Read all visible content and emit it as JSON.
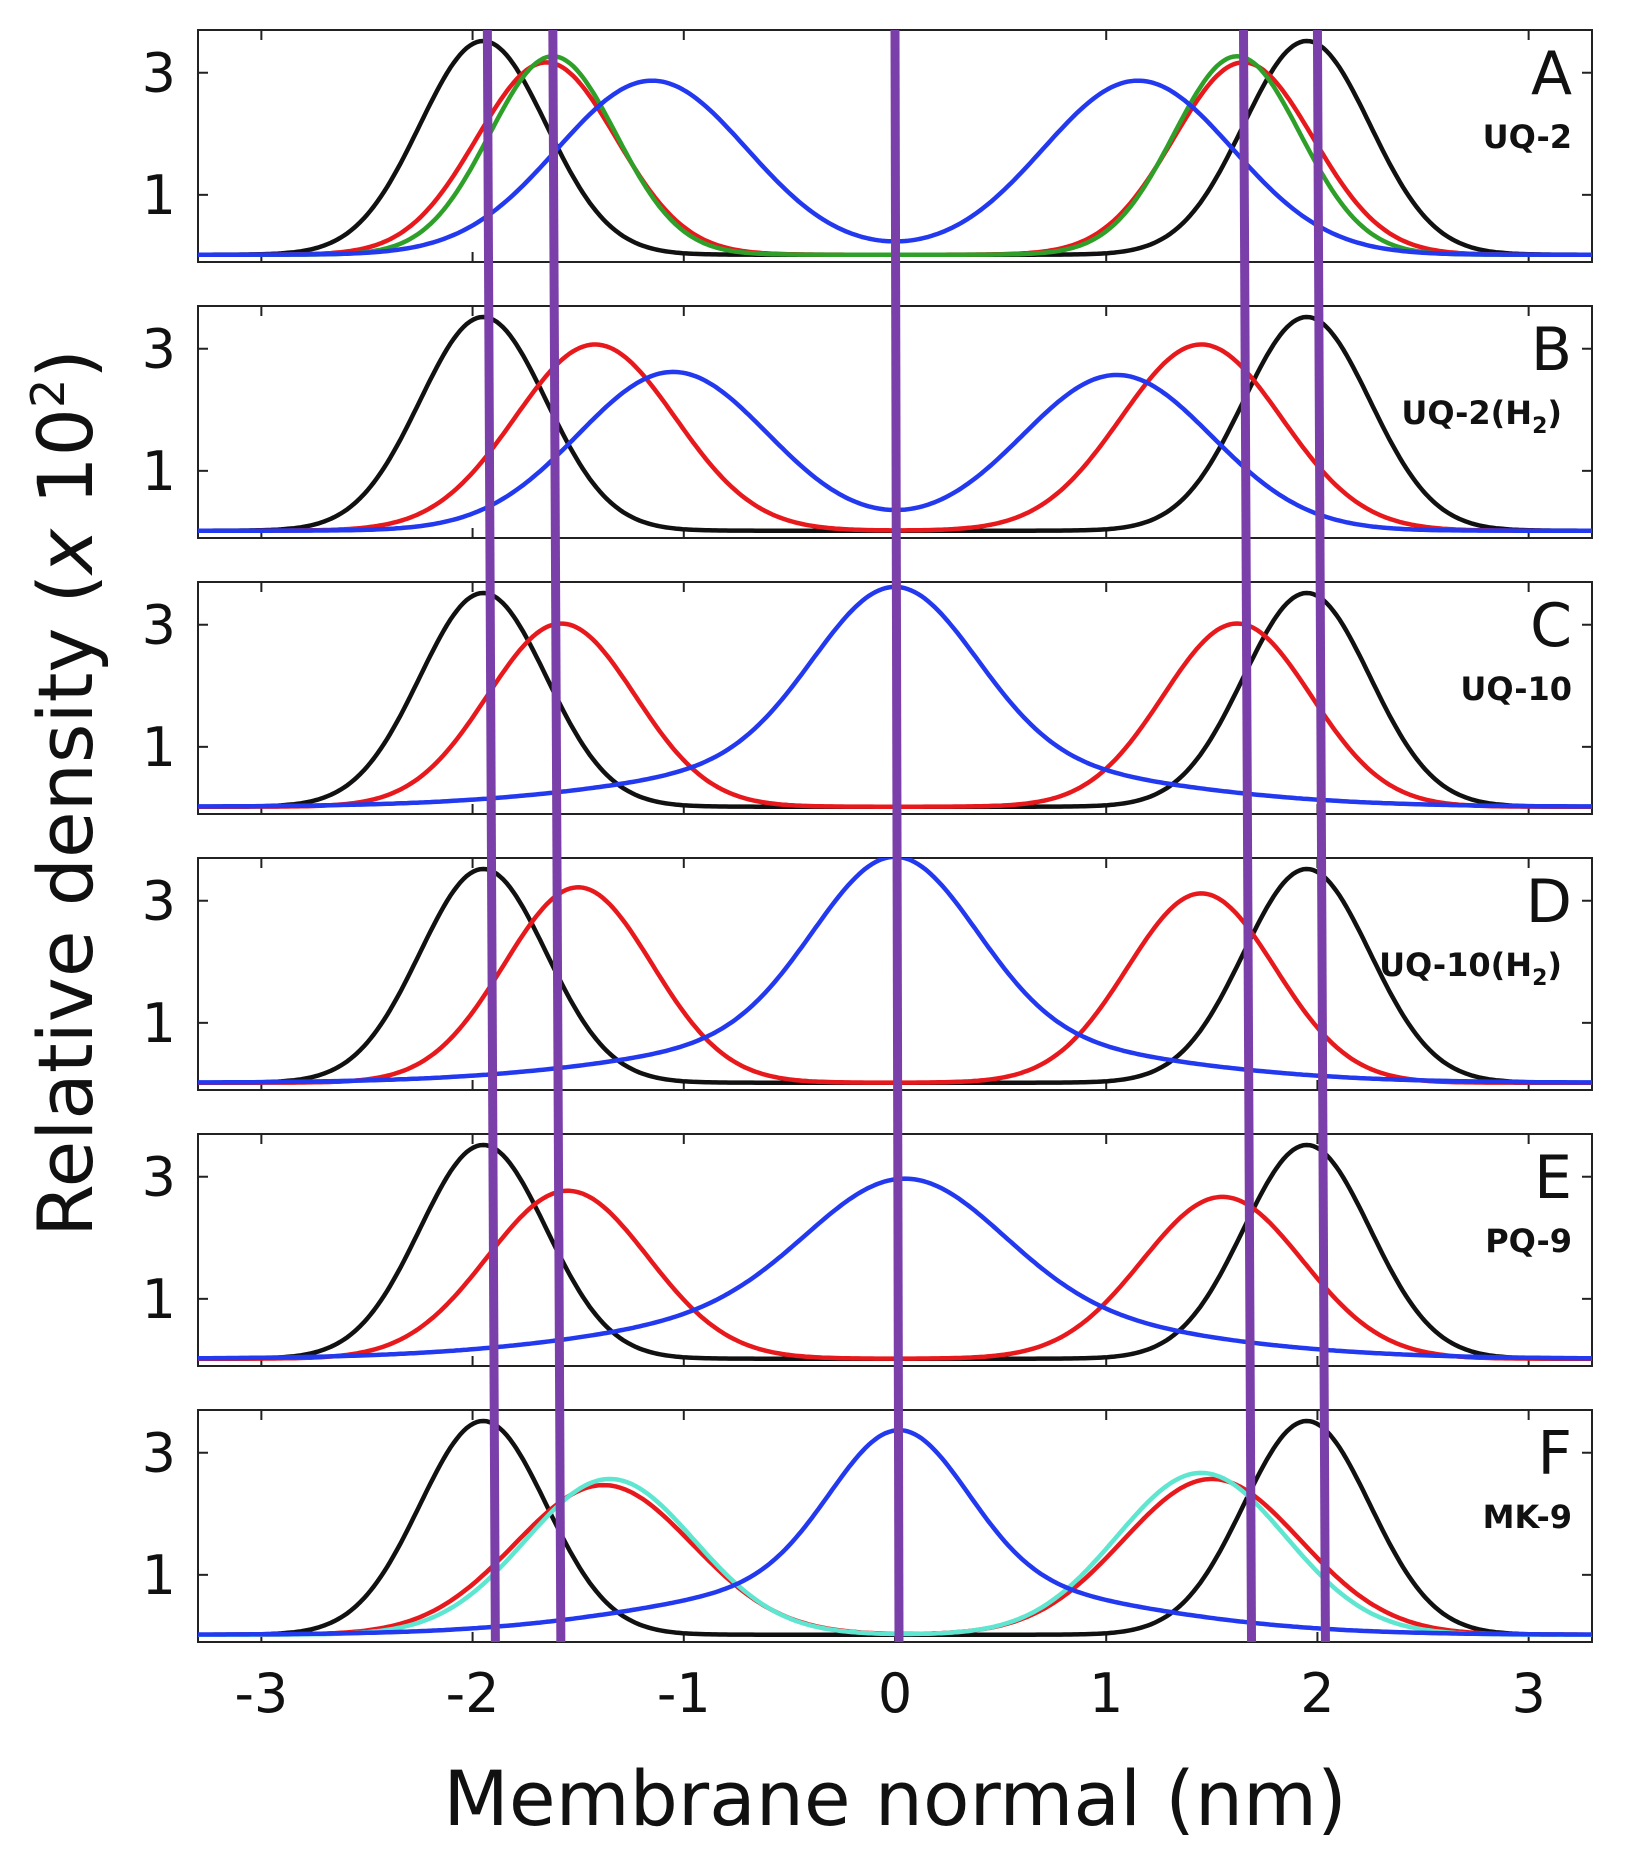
{
  "chart_data": {
    "type": "line",
    "ylabel": "Relative density (x 10²)",
    "ylabel_parts": {
      "main": "Relative density (",
      "italic_x": "x",
      "ten": " 10",
      "exp": "2",
      "close": ")"
    },
    "xlabel": "Membrane normal (nm)",
    "xlim": [
      -3.3,
      3.3
    ],
    "ylim": [
      -0.1,
      3.7
    ],
    "xticks": [
      -3,
      -2,
      -1,
      0,
      1,
      2,
      3
    ],
    "xtick_labels": [
      "-3",
      "-2",
      "-1",
      "0",
      "1",
      "2",
      "3"
    ],
    "yticks": [
      1,
      3
    ],
    "ytick_labels": [
      "1",
      "3"
    ],
    "reference_lines": [
      -1.93,
      -1.62,
      0.0,
      1.65,
      2.0
    ],
    "colors": {
      "black": "#111111",
      "red": "#e8191c",
      "blue": "#2239f0",
      "green": "#2ea02a",
      "cyan": "#5ee6d0",
      "ref": "#7a3fa8"
    },
    "panels": [
      {
        "letter": "A",
        "name": "UQ-2",
        "sub": "",
        "series": [
          {
            "color": "black",
            "peaks": [
              [
                -1.95,
                3.5,
                0.3
              ],
              [
                1.95,
                3.5,
                0.3
              ]
            ]
          },
          {
            "color": "red",
            "peaks": [
              [
                -1.65,
                3.15,
                0.33
              ],
              [
                1.65,
                3.15,
                0.33
              ]
            ]
          },
          {
            "color": "green",
            "peaks": [
              [
                -1.62,
                3.25,
                0.3
              ],
              [
                1.62,
                3.25,
                0.3
              ]
            ]
          },
          {
            "color": "blue",
            "peaks": [
              [
                -1.15,
                2.85,
                0.45
              ],
              [
                1.15,
                2.85,
                0.45
              ]
            ]
          }
        ]
      },
      {
        "letter": "B",
        "name": "UQ-2(H",
        "sub": "2",
        "series": [
          {
            "color": "black",
            "peaks": [
              [
                -1.95,
                3.5,
                0.3
              ],
              [
                1.95,
                3.5,
                0.3
              ]
            ]
          },
          {
            "color": "red",
            "peaks": [
              [
                -1.42,
                3.05,
                0.38
              ],
              [
                1.45,
                3.05,
                0.38
              ]
            ]
          },
          {
            "color": "blue",
            "peaks": [
              [
                -1.05,
                2.6,
                0.45
              ],
              [
                1.05,
                2.55,
                0.45
              ]
            ]
          }
        ]
      },
      {
        "letter": "C",
        "name": "UQ-10",
        "sub": "",
        "series": [
          {
            "color": "black",
            "peaks": [
              [
                -1.95,
                3.5,
                0.3
              ],
              [
                1.95,
                3.5,
                0.3
              ]
            ]
          },
          {
            "color": "red",
            "peaks": [
              [
                -1.58,
                3.0,
                0.35
              ],
              [
                1.62,
                3.0,
                0.35
              ]
            ]
          },
          {
            "color": "blue",
            "peaks": [
              [
                0.0,
                2.75,
                0.38
              ],
              [
                0.0,
                0.85,
                1.0
              ]
            ]
          }
        ]
      },
      {
        "letter": "D",
        "name": "UQ-10(H",
        "sub": "2",
        "series": [
          {
            "color": "black",
            "peaks": [
              [
                -1.95,
                3.5,
                0.3
              ],
              [
                1.95,
                3.5,
                0.3
              ]
            ]
          },
          {
            "color": "red",
            "peaks": [
              [
                -1.5,
                3.2,
                0.35
              ],
              [
                1.45,
                3.1,
                0.35
              ]
            ]
          },
          {
            "color": "blue",
            "peaks": [
              [
                0.0,
                2.85,
                0.38
              ],
              [
                0.0,
                0.85,
                1.0
              ]
            ]
          }
        ]
      },
      {
        "letter": "E",
        "name": "PQ-9",
        "sub": "",
        "series": [
          {
            "color": "black",
            "peaks": [
              [
                -1.95,
                3.5,
                0.3
              ],
              [
                1.95,
                3.5,
                0.3
              ]
            ]
          },
          {
            "color": "red",
            "peaks": [
              [
                -1.55,
                2.75,
                0.38
              ],
              [
                1.55,
                2.65,
                0.38
              ]
            ]
          },
          {
            "color": "blue",
            "peaks": [
              [
                0.05,
                2.0,
                0.45
              ],
              [
                0.0,
                0.95,
                1.05
              ]
            ]
          }
        ]
      },
      {
        "letter": "F",
        "name": "MK-9",
        "sub": "",
        "series": [
          {
            "color": "black",
            "peaks": [
              [
                -1.95,
                3.5,
                0.3
              ],
              [
                1.95,
                3.5,
                0.3
              ]
            ]
          },
          {
            "color": "red",
            "peaks": [
              [
                -1.38,
                2.45,
                0.42
              ],
              [
                1.5,
                2.55,
                0.42
              ]
            ]
          },
          {
            "color": "cyan",
            "peaks": [
              [
                -1.35,
                2.55,
                0.4
              ],
              [
                1.45,
                2.65,
                0.4
              ]
            ]
          },
          {
            "color": "blue",
            "peaks": [
              [
                0.02,
                2.4,
                0.32
              ],
              [
                0.0,
                0.95,
                0.95
              ]
            ]
          }
        ]
      }
    ]
  }
}
